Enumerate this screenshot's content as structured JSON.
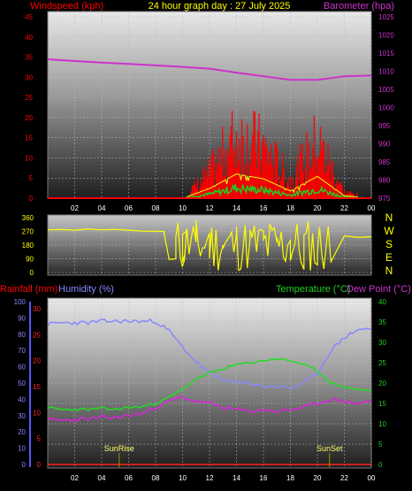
{
  "header": {
    "title": "24 hour graph day : 27 July 2025",
    "left_label": "Windspeed (kph)",
    "right_label": "Barometer (hpa)"
  },
  "colors": {
    "windspeed": "#ff0000",
    "gust": "#ffff00",
    "barometer": "#cc33cc",
    "wind_avg": "#22cc22",
    "direction": "#ffff00",
    "rainfall": "#ff2222",
    "humidity": "#8888ff",
    "temperature": "#22dd22",
    "dewpoint": "#dd22dd",
    "sun_marker": "#999900",
    "bottom_title_left": "#ff0000",
    "bottom_title_mid": "#8888ff",
    "bottom_title_right": "#22cc22",
    "bottom_title_far": "#cc33cc"
  },
  "bottom_titles": {
    "rainfall": "Rainfall (mm)",
    "humidity": "Humidity (%)",
    "temperature": "Temperature (°C)",
    "dewpoint": "Dew Point (°C)"
  },
  "x_ticks": [
    "02",
    "04",
    "06",
    "08",
    "10",
    "12",
    "14",
    "16",
    "18",
    "20",
    "22",
    "00"
  ],
  "compass": [
    "N",
    "W",
    "S",
    "E",
    "N"
  ],
  "chart_data": [
    {
      "type": "line",
      "title": "24 hour graph day : 27 July 2025",
      "x": [
        0,
        2,
        4,
        6,
        8,
        10,
        12,
        14,
        16,
        18,
        20,
        22,
        24
      ],
      "x_tick_labels": [
        "02",
        "04",
        "06",
        "08",
        "10",
        "12",
        "14",
        "16",
        "18",
        "20",
        "22",
        "00"
      ],
      "y_left_label": "Windspeed (kph)",
      "y_left_ticks": [
        0,
        5,
        10,
        15,
        20,
        25,
        30,
        35,
        40,
        45
      ],
      "ylim_left": [
        0,
        45
      ],
      "y_right_label": "Barometer (hpa)",
      "y_right_ticks": [
        975,
        980,
        985,
        990,
        995,
        1000,
        1005,
        1010,
        1015,
        1020,
        1025
      ],
      "ylim_right": [
        975,
        1025
      ],
      "series": [
        {
          "axis": "right",
          "values": [
            1013.3,
            1012.8,
            1012.4,
            1012.0,
            1011.6,
            1011.2,
            1010.7,
            1009.6,
            1008.6,
            1007.6,
            1007.6,
            1008.6,
            1008.8
          ]
        },
        {
          "axis": "left",
          "values": [
            0,
            0,
            0,
            0,
            0,
            0,
            4,
            10,
            8,
            3,
            9,
            1,
            0
          ]
        }
      ]
    },
    {
      "type": "line",
      "x": [
        0,
        1,
        2,
        3,
        4,
        5,
        6,
        7,
        8,
        8.6,
        9,
        9.5,
        10,
        11,
        12,
        13,
        14,
        15,
        16,
        17,
        18,
        19,
        20,
        21,
        22,
        23,
        24
      ],
      "y_ticks": [
        0,
        90,
        180,
        270,
        360
      ],
      "ylim": [
        0,
        360
      ],
      "series": [
        {
          "values": [
            280,
            282,
            278,
            285,
            280,
            283,
            278,
            272,
            270,
            270,
            85,
            90,
            250,
            200,
            260,
            180,
            250,
            220,
            270,
            200,
            210,
            20,
            50,
            70,
            240,
            230,
            235
          ]
        }
      ]
    },
    {
      "type": "line",
      "x": [
        0,
        1,
        2,
        3,
        4,
        5,
        6,
        7,
        8,
        9,
        10,
        11,
        12,
        13,
        14,
        15,
        16,
        17,
        18,
        19,
        20,
        21,
        22,
        23,
        24
      ],
      "y_rain_ticks": [
        0,
        5,
        10,
        15,
        20,
        25,
        30
      ],
      "ylim_rain": [
        0,
        30
      ],
      "y_humidity_ticks": [
        0,
        10,
        20,
        30,
        40,
        50,
        60,
        70,
        80,
        90,
        100
      ],
      "ylim_humidity": [
        0,
        100
      ],
      "y_temp_ticks": [
        0,
        5,
        10,
        15,
        20,
        25,
        30,
        35,
        40
      ],
      "ylim_temp": [
        0,
        40
      ],
      "annotations": [
        {
          "text": "SunRise",
          "x": 5.3
        },
        {
          "text": "SunSet",
          "x": 20.9
        }
      ],
      "series": [
        {
          "name": "Rainfall (mm)",
          "axis": "rain",
          "values": [
            0,
            0,
            0,
            0,
            0,
            0,
            0,
            0,
            0,
            0,
            0,
            0,
            0,
            0,
            0,
            0,
            0,
            0,
            0,
            0,
            0,
            0,
            0,
            0,
            0
          ]
        },
        {
          "name": "Humidity (%)",
          "axis": "humidity",
          "values": [
            86,
            87,
            87,
            87,
            88,
            88,
            88,
            88,
            88,
            82,
            72,
            63,
            56,
            52,
            50,
            50,
            48,
            48,
            47,
            50,
            56,
            70,
            78,
            83,
            83
          ]
        },
        {
          "name": "Temperature (°C)",
          "axis": "temp",
          "values": [
            14.0,
            13.5,
            13.5,
            13.5,
            13.8,
            13.5,
            14.0,
            14.2,
            15.0,
            16.5,
            18.5,
            21.0,
            22.5,
            23.5,
            24.5,
            25.0,
            25.5,
            26.0,
            25.5,
            24.5,
            23.0,
            20.0,
            19.0,
            18.5,
            18.0
          ]
        },
        {
          "name": "Dew Point (°C)",
          "axis": "temp",
          "values": [
            11.0,
            10.8,
            11.0,
            11.2,
            11.5,
            11.5,
            12.0,
            12.5,
            14.0,
            15.5,
            16.5,
            15.5,
            15.0,
            14.0,
            13.5,
            13.0,
            13.5,
            13.0,
            13.5,
            14.0,
            15.0,
            16.0,
            15.5,
            15.0,
            15.5
          ]
        }
      ]
    }
  ]
}
